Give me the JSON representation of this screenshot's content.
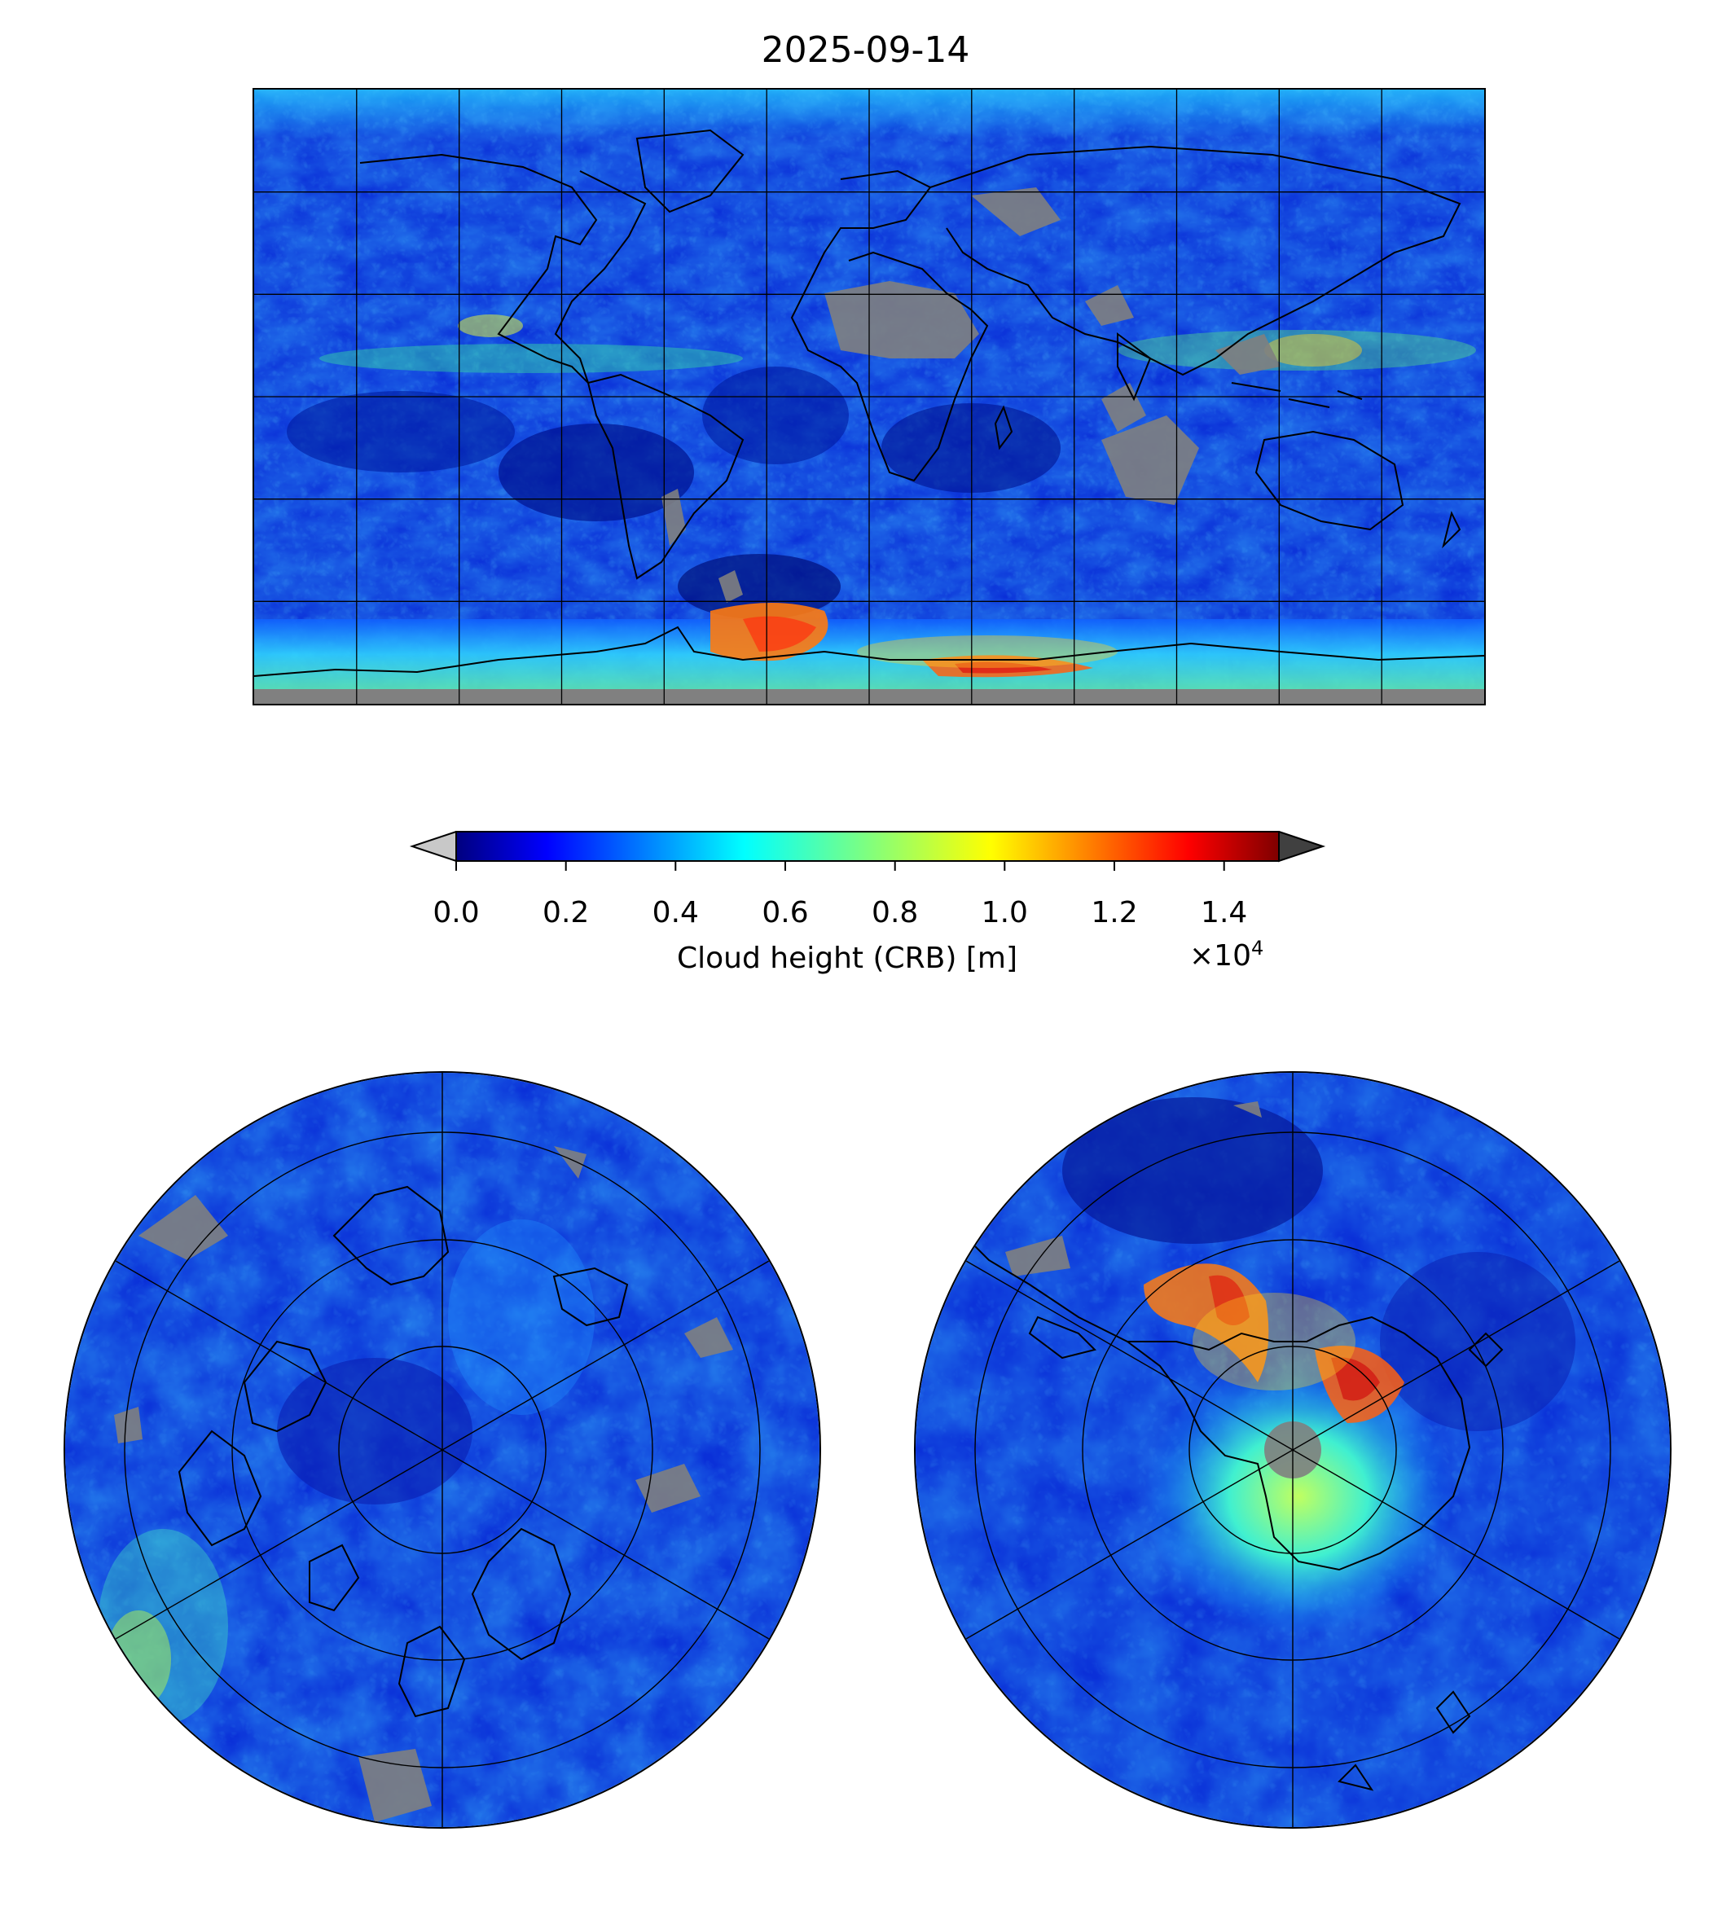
{
  "title": "2025-09-14",
  "colorbar": {
    "label": "Cloud height (CRB) [m]",
    "multiplier_base": "×10",
    "multiplier_exp": "4",
    "ticks": [
      "0.0",
      "0.2",
      "0.4",
      "0.6",
      "0.8",
      "1.0",
      "1.2",
      "1.4"
    ],
    "vmin": 0.0,
    "vmax": 1.5,
    "colormap": [
      "#00007f",
      "#0000ff",
      "#0080ff",
      "#00ffff",
      "#7fff7f",
      "#ffff00",
      "#ff8000",
      "#ff0000",
      "#7f0000"
    ],
    "under_color": "#c8c8c8",
    "over_color": "#404040"
  },
  "colors": {
    "ocean_base": "#0a2fd8",
    "missing": "#808080",
    "coast": "#000000"
  },
  "maps": {
    "world": {
      "projection": "equirectangular",
      "grid_lon_step": 30,
      "grid_lat_step": 30
    },
    "north": {
      "projection": "north-polar-stereographic"
    },
    "south": {
      "projection": "south-polar-stereographic"
    }
  }
}
